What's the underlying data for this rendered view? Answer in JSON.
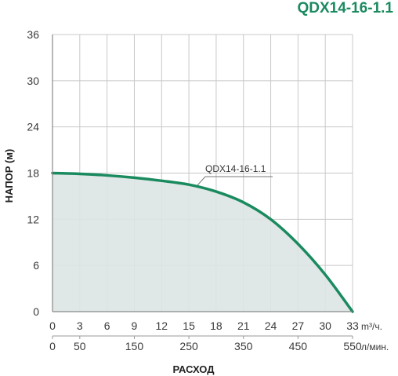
{
  "colors": {
    "accent": "#1a8a5f",
    "curve": "#1a8a5f",
    "fill": "#dde4e4",
    "grid": "#c8c8c8",
    "axis": "#888888"
  },
  "chart_data": {
    "type": "area",
    "title": "QDX14-16-1.1",
    "ylabel": "НАПОР (м)",
    "xlabel": "РАСХОД",
    "ylim": [
      0,
      36
    ],
    "y_ticks": [
      "0",
      "6",
      "12",
      "18",
      "24",
      "30",
      "36"
    ],
    "xlim": [
      0,
      33
    ],
    "x_ticks_m3h": [
      "0",
      "3",
      "6",
      "9",
      "12",
      "15",
      "18",
      "21",
      "24",
      "27",
      "30",
      "33"
    ],
    "x_unit_m3h": "m³/ч.",
    "x_ticks_lmin": [
      "0",
      "50",
      "150",
      "250",
      "350",
      "450",
      "550"
    ],
    "x_unit_lmin": "л/мин.",
    "grid": true,
    "series": [
      {
        "name": "QDX14-16-1.1",
        "x": [
          0,
          3,
          6,
          9,
          12,
          15,
          18,
          21,
          24,
          27,
          30,
          33
        ],
        "y": [
          18,
          17.9,
          17.7,
          17.4,
          17,
          16.5,
          15.6,
          14.2,
          12,
          8.8,
          4.8,
          0
        ]
      }
    ]
  }
}
